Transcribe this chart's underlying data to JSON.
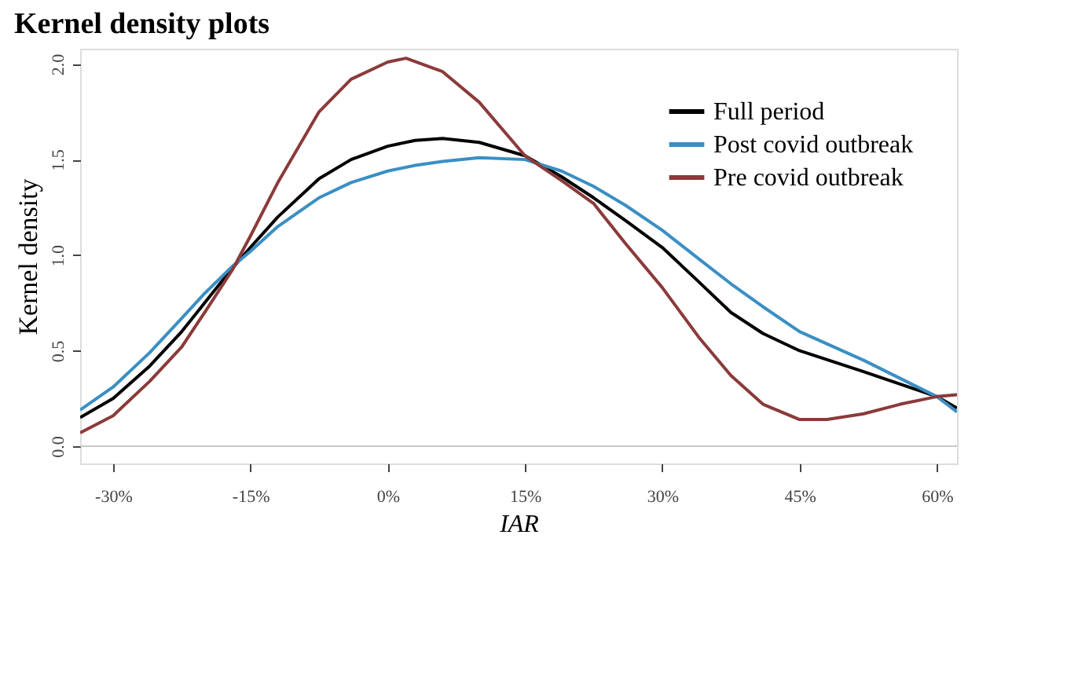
{
  "chart_data": {
    "type": "line",
    "title": "Kernel density plots",
    "xlabel": "IAR",
    "ylabel": "Kernel density",
    "xlim": [
      -33.6,
      62.2
    ],
    "ylim": [
      -0.09,
      2.08
    ],
    "xticks": [
      {
        "value": -30,
        "label": "-30%"
      },
      {
        "value": -15,
        "label": "-15%"
      },
      {
        "value": 0,
        "label": "0%"
      },
      {
        "value": 15,
        "label": "15%"
      },
      {
        "value": 30,
        "label": "30%"
      },
      {
        "value": 45,
        "label": "45%"
      },
      {
        "value": 60,
        "label": "60%"
      }
    ],
    "yticks": [
      {
        "value": 0,
        "label": "0.0"
      },
      0.5,
      {
        "value": 1,
        "label": "1.0"
      },
      1.5,
      {
        "value": 2,
        "label": "2.0"
      }
    ],
    "grid": false,
    "legend": "top right",
    "marker": "none",
    "line_style": "solid",
    "ref_lines": [
      {
        "axis": "y",
        "value": 0,
        "color": "#c8c8c8"
      }
    ],
    "series": [
      {
        "name": "Full period",
        "color": "#000000",
        "x": [
          -33.6,
          -30,
          -26,
          -22.5,
          -20,
          -17,
          -15,
          -12,
          -7.5,
          -4,
          0,
          3,
          6,
          10,
          15,
          19,
          22.5,
          26,
          30,
          34,
          37.5,
          41,
          45,
          52,
          60,
          62.2
        ],
        "values": [
          0.15,
          0.25,
          0.42,
          0.6,
          0.75,
          0.93,
          1.04,
          1.2,
          1.4,
          1.5,
          1.57,
          1.6,
          1.61,
          1.59,
          1.52,
          1.41,
          1.3,
          1.18,
          1.04,
          0.86,
          0.7,
          0.59,
          0.5,
          0.39,
          0.26,
          0.2
        ]
      },
      {
        "name": "Post covid outbreak",
        "color": "#3a8fc4",
        "x": [
          -33.6,
          -30,
          -26,
          -22.5,
          -20,
          -17,
          -15,
          -12,
          -7.5,
          -4,
          0,
          3,
          6,
          10,
          15,
          19,
          22.5,
          26,
          30,
          34,
          37.5,
          41,
          45,
          52,
          60,
          62.2
        ],
        "values": [
          0.19,
          0.31,
          0.49,
          0.67,
          0.8,
          0.94,
          1.02,
          1.15,
          1.3,
          1.38,
          1.44,
          1.47,
          1.49,
          1.51,
          1.5,
          1.44,
          1.36,
          1.26,
          1.13,
          0.98,
          0.85,
          0.73,
          0.6,
          0.45,
          0.26,
          0.18
        ]
      },
      {
        "name": "Pre covid outbreak",
        "color": "#8b3a3a",
        "x": [
          -33.6,
          -30,
          -26,
          -22.5,
          -20,
          -17,
          -15,
          -12,
          -7.5,
          -4,
          0,
          2,
          6,
          10,
          15,
          19,
          22.5,
          26,
          30,
          34,
          37.5,
          41,
          45,
          48,
          52,
          56,
          60,
          62.2
        ],
        "values": [
          0.07,
          0.16,
          0.34,
          0.52,
          0.7,
          0.92,
          1.1,
          1.38,
          1.75,
          1.92,
          2.01,
          2.03,
          1.96,
          1.8,
          1.52,
          1.39,
          1.27,
          1.06,
          0.83,
          0.57,
          0.37,
          0.22,
          0.14,
          0.14,
          0.17,
          0.22,
          0.26,
          0.27
        ]
      }
    ]
  }
}
